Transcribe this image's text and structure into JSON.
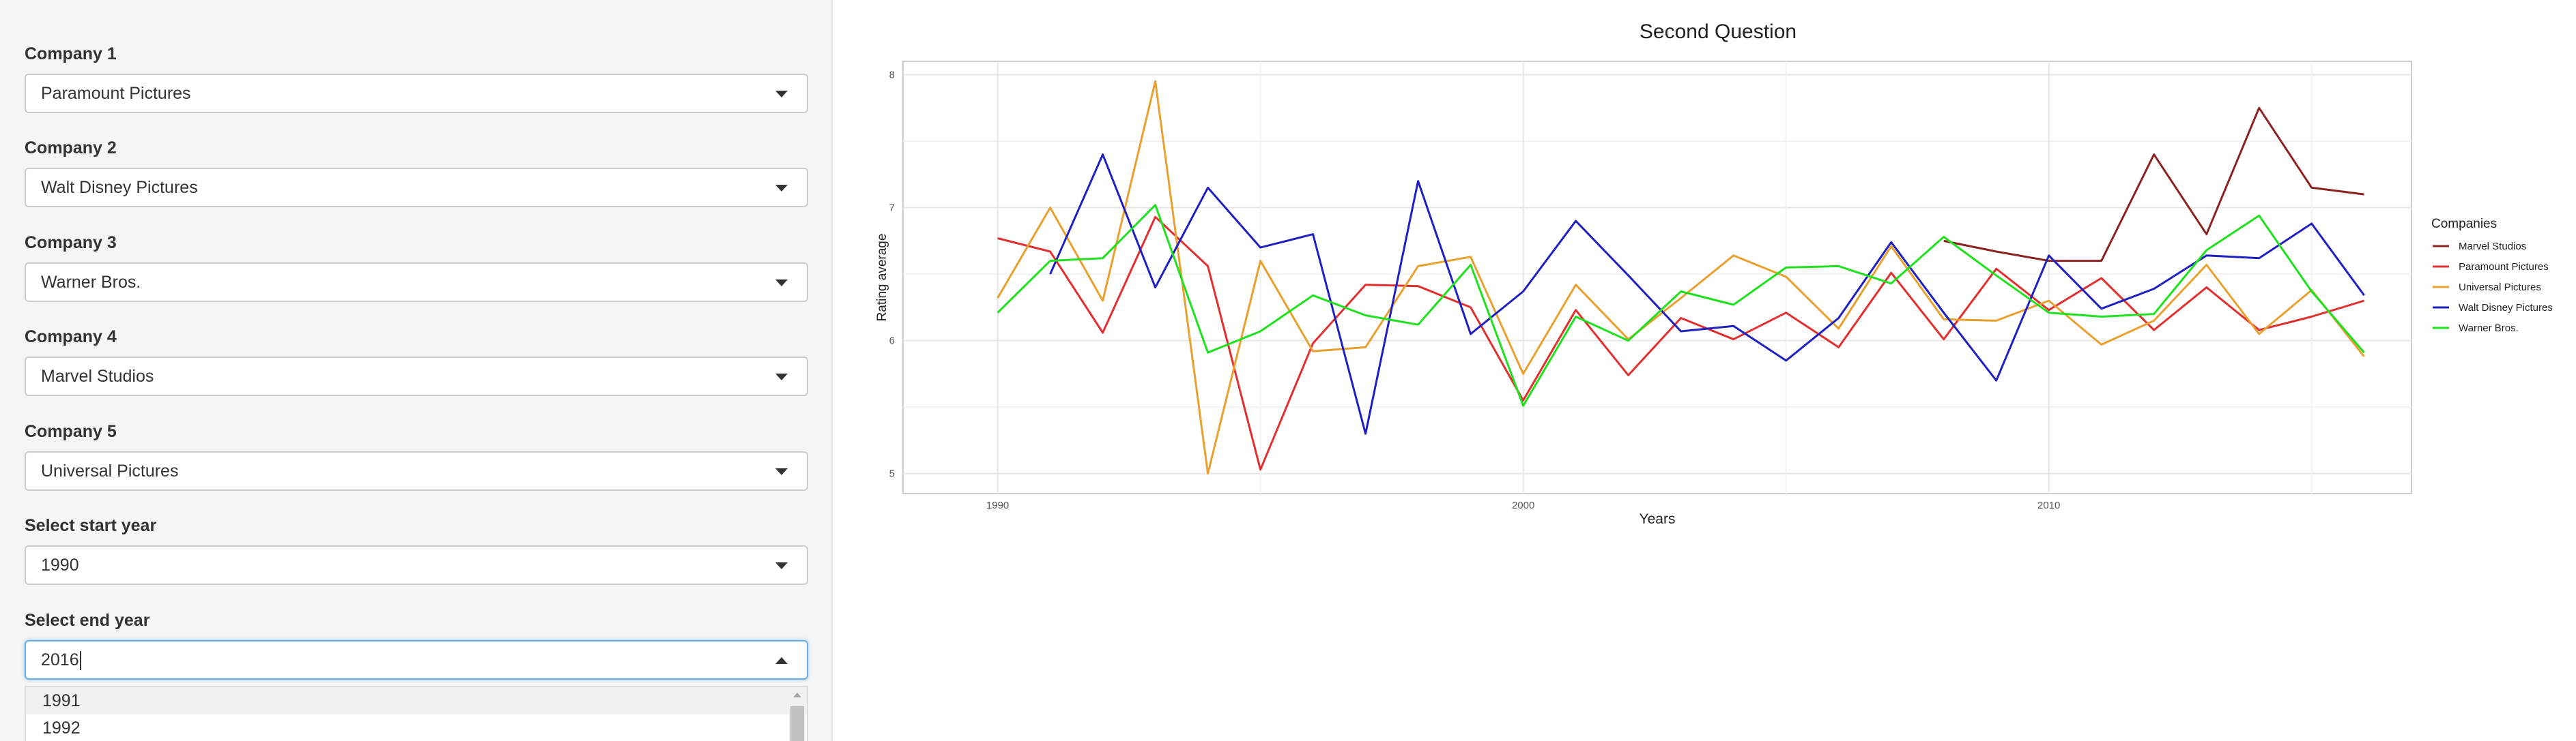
{
  "sidebar": {
    "company1": {
      "label": "Company 1",
      "value": "Paramount Pictures"
    },
    "company2": {
      "label": "Company 2",
      "value": "Walt Disney Pictures"
    },
    "company3": {
      "label": "Company 3",
      "value": "Warner Bros."
    },
    "company4": {
      "label": "Company 4",
      "value": "Marvel Studios"
    },
    "company5": {
      "label": "Company 5",
      "value": "Universal Pictures"
    },
    "start_year": {
      "label": "Select start year",
      "value": "1990"
    },
    "end_year": {
      "label": "Select end year",
      "value": "2016"
    },
    "end_year_options": [
      "1991",
      "1992"
    ]
  },
  "chart_data": {
    "type": "line",
    "title": "Second Question",
    "xlabel": "Years",
    "ylabel": "Rating average",
    "xlim": [
      1988.2,
      2016.9
    ],
    "ylim": [
      4.85,
      8.1
    ],
    "x_ticks": [
      1990,
      2000,
      2010
    ],
    "y_ticks": [
      5,
      6,
      7,
      8
    ],
    "grid": true,
    "legend_title": "Companies",
    "legend_position": "right",
    "series": [
      {
        "name": "Marvel Studios",
        "color": "#8b2323",
        "x": [
          2008,
          2009,
          2010,
          2011,
          2012,
          2013,
          2014,
          2015,
          2016
        ],
        "y": [
          6.75,
          6.67,
          6.6,
          6.6,
          7.4,
          6.8,
          7.75,
          7.15,
          7.1
        ]
      },
      {
        "name": "Paramount Pictures",
        "color": "#e03030",
        "x": [
          1990,
          1991,
          1992,
          1993,
          1994,
          1995,
          1996,
          1997,
          1998,
          1999,
          2000,
          2001,
          2002,
          2003,
          2004,
          2005,
          2006,
          2007,
          2008,
          2009,
          2010,
          2011,
          2012,
          2013,
          2014,
          2015,
          2016
        ],
        "y": [
          6.77,
          6.67,
          6.06,
          6.93,
          6.56,
          5.03,
          5.98,
          6.42,
          6.41,
          6.25,
          5.55,
          6.23,
          5.74,
          6.17,
          6.01,
          6.21,
          5.95,
          6.51,
          6.01,
          6.54,
          6.23,
          6.47,
          6.08,
          6.4,
          6.08,
          6.18,
          6.3
        ]
      },
      {
        "name": "Universal Pictures",
        "color": "#e8a030",
        "x": [
          1990,
          1991,
          1992,
          1993,
          1994,
          1995,
          1996,
          1997,
          1998,
          1999,
          2000,
          2001,
          2002,
          2003,
          2004,
          2005,
          2006,
          2007,
          2008,
          2009,
          2010,
          2011,
          2012,
          2013,
          2014,
          2015,
          2016
        ],
        "y": [
          6.32,
          7.0,
          6.3,
          7.95,
          5.0,
          6.6,
          5.92,
          5.95,
          6.56,
          6.63,
          5.75,
          6.42,
          6.01,
          6.32,
          6.64,
          6.48,
          6.09,
          6.71,
          6.16,
          6.15,
          6.3,
          5.97,
          6.15,
          6.57,
          6.05,
          6.38,
          5.88
        ]
      },
      {
        "name": "Walt Disney Pictures",
        "color": "#2020c0",
        "x": [
          1991,
          1992,
          1993,
          1994,
          1995,
          1996,
          1997,
          1998,
          1999,
          2000,
          2001,
          2002,
          2003,
          2004,
          2005,
          2006,
          2007,
          2008,
          2009,
          2010,
          2011,
          2012,
          2013,
          2014,
          2015,
          2016
        ],
        "y": [
          6.5,
          7.4,
          6.4,
          7.15,
          6.7,
          6.8,
          5.3,
          7.2,
          6.05,
          6.37,
          6.9,
          6.49,
          6.07,
          6.11,
          5.85,
          6.17,
          6.74,
          6.21,
          5.7,
          6.64,
          6.24,
          6.39,
          6.64,
          6.62,
          6.88,
          6.34
        ]
      },
      {
        "name": "Warner Bros.",
        "color": "#20e020",
        "x": [
          1990,
          1991,
          1992,
          1993,
          1994,
          1995,
          1996,
          1997,
          1998,
          1999,
          2000,
          2001,
          2002,
          2003,
          2004,
          2005,
          2006,
          2007,
          2008,
          2009,
          2010,
          2011,
          2012,
          2013,
          2014,
          2015,
          2016
        ],
        "y": [
          6.21,
          6.6,
          6.62,
          7.02,
          5.91,
          6.07,
          6.34,
          6.19,
          6.12,
          6.57,
          5.51,
          6.18,
          6.0,
          6.37,
          6.27,
          6.55,
          6.56,
          6.43,
          6.78,
          6.49,
          6.21,
          6.18,
          6.2,
          6.68,
          6.94,
          6.37,
          5.91
        ]
      }
    ]
  }
}
